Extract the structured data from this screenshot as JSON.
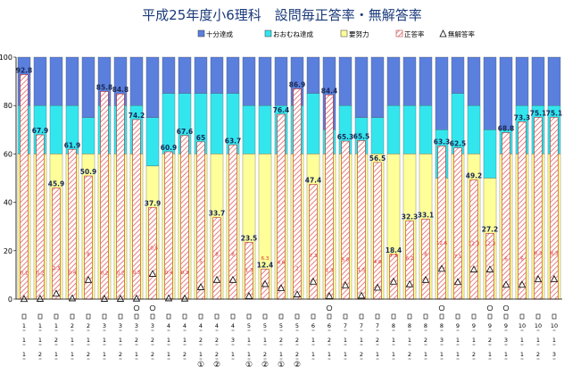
{
  "chart_data": {
    "type": "bar",
    "title": "平成25年度小6理科　設問毎正答率・無解答率",
    "legend": [
      {
        "name": "十分達成",
        "color": "#5b7fdc"
      },
      {
        "name": "おおむね達成",
        "color": "#33e6ee"
      },
      {
        "name": "要努力",
        "color": "#ffff99"
      },
      {
        "name": "正答率",
        "color": "#f8c8c8"
      },
      {
        "name": "無解答率",
        "color": "#ffffff"
      }
    ],
    "ylim": [
      0,
      100
    ],
    "yticks": [
      0,
      20,
      40,
      60,
      80,
      100
    ],
    "categories": [
      {
        "l1": "1",
        "l2": "1",
        "l3": "1",
        "circ": false,
        "extra": ""
      },
      {
        "l1": "1",
        "l2": "1",
        "l3": "2",
        "circ": false,
        "extra": ""
      },
      {
        "l1": "1",
        "l2": "2",
        "l3": "1",
        "circ": false,
        "extra": ""
      },
      {
        "l1": "2",
        "l2": "1",
        "l3": "1",
        "circ": false,
        "extra": ""
      },
      {
        "l1": "2",
        "l2": "1",
        "l3": "2",
        "circ": false,
        "extra": ""
      },
      {
        "l1": "3",
        "l2": "1",
        "l3": "1",
        "circ": false,
        "extra": ""
      },
      {
        "l1": "3",
        "l2": "1",
        "l3": "2",
        "circ": false,
        "extra": ""
      },
      {
        "l1": "3",
        "l2": "2",
        "l3": "1",
        "circ": true,
        "extra": ""
      },
      {
        "l1": "3",
        "l2": "2",
        "l3": "2",
        "circ": true,
        "extra": ""
      },
      {
        "l1": "4",
        "l2": "1",
        "l3": "1",
        "circ": false,
        "extra": ""
      },
      {
        "l1": "4",
        "l2": "1",
        "l3": "2",
        "circ": false,
        "extra": ""
      },
      {
        "l1": "4",
        "l2": "2",
        "l3": "1",
        "circ": false,
        "extra": "①"
      },
      {
        "l1": "4",
        "l2": "2",
        "l3": "2",
        "circ": false,
        "extra": "②"
      },
      {
        "l1": "4",
        "l2": "3",
        "l3": "1",
        "circ": false,
        "extra": ""
      },
      {
        "l1": "5",
        "l2": "1",
        "l3": "1",
        "circ": false,
        "extra": "①"
      },
      {
        "l1": "5",
        "l2": "1",
        "l3": "2",
        "circ": false,
        "extra": "②"
      },
      {
        "l1": "5",
        "l2": "2",
        "l3": "1",
        "circ": false,
        "extra": "①"
      },
      {
        "l1": "5",
        "l2": "2",
        "l3": "2",
        "circ": false,
        "extra": "②"
      },
      {
        "l1": "6",
        "l2": "1",
        "l3": "1",
        "circ": false,
        "extra": ""
      },
      {
        "l1": "6",
        "l2": "2",
        "l3": "1",
        "circ": true,
        "extra": ""
      },
      {
        "l1": "7",
        "l2": "1",
        "l3": "1",
        "circ": false,
        "extra": ""
      },
      {
        "l1": "7",
        "l2": "1",
        "l3": "2",
        "circ": false,
        "extra": ""
      },
      {
        "l1": "7",
        "l2": "2",
        "l3": "1",
        "circ": false,
        "extra": ""
      },
      {
        "l1": "8",
        "l2": "1",
        "l3": "1",
        "circ": false,
        "extra": ""
      },
      {
        "l1": "8",
        "l2": "1",
        "l3": "2",
        "circ": false,
        "extra": ""
      },
      {
        "l1": "8",
        "l2": "2",
        "l3": "1",
        "circ": false,
        "extra": ""
      },
      {
        "l1": "8",
        "l2": "3",
        "l3": "1",
        "circ": true,
        "extra": ""
      },
      {
        "l1": "9",
        "l2": "1",
        "l3": "1",
        "circ": false,
        "extra": ""
      },
      {
        "l1": "9",
        "l2": "1",
        "l3": "2",
        "circ": false,
        "extra": ""
      },
      {
        "l1": "9",
        "l2": "2",
        "l3": "1",
        "circ": true,
        "extra": ""
      },
      {
        "l1": "9",
        "l2": "3",
        "l3": "1",
        "circ": true,
        "extra": ""
      },
      {
        "l1": "10",
        "l2": "1",
        "l3": "1",
        "circ": false,
        "extra": ""
      },
      {
        "l1": "10",
        "l2": "1",
        "l3": "2",
        "circ": false,
        "extra": ""
      },
      {
        "l1": "10",
        "l2": "1",
        "l3": "3",
        "circ": false,
        "extra": ""
      }
    ],
    "series": [
      {
        "name": "十分達成",
        "values": [
          100,
          100,
          100,
          100,
          100,
          100,
          100,
          100,
          100,
          100,
          100,
          100,
          100,
          100,
          100,
          100,
          100,
          100,
          100,
          100,
          100,
          100,
          100,
          100,
          100,
          100,
          100,
          100,
          100,
          100,
          100,
          100,
          100,
          100
        ]
      },
      {
        "name": "おおむね達成",
        "values": [
          80,
          80,
          80,
          80,
          75,
          80,
          80,
          80,
          75,
          85,
          85,
          85,
          85,
          85,
          80,
          80,
          80,
          80,
          85,
          70,
          80,
          75,
          75,
          80,
          80,
          80,
          70,
          85,
          80,
          70,
          70,
          80,
          80,
          80
        ]
      },
      {
        "name": "要努力",
        "values": [
          60,
          60,
          60,
          60,
          60,
          60,
          60,
          60,
          55,
          60,
          60,
          60,
          60,
          60,
          60,
          60,
          60,
          60,
          60,
          60,
          60,
          60,
          60,
          60,
          60,
          60,
          50,
          60,
          60,
          50,
          60,
          60,
          60,
          60
        ]
      },
      {
        "name": "正答率",
        "values": [
          92.8,
          67.9,
          45.9,
          61.9,
          50.9,
          85.8,
          84.8,
          74.2,
          37.9,
          60.9,
          67.6,
          65.0,
          33.7,
          63.7,
          23.5,
          12.4,
          76.4,
          86.9,
          47.4,
          84.4,
          65.3,
          65.5,
          56.5,
          18.4,
          32.3,
          33.1,
          63.3,
          62.5,
          49.2,
          27.2,
          68.8,
          73.3,
          75.1,
          75.1
        ]
      },
      {
        "name": "無解答率",
        "values": [
          0.1,
          0.2,
          2.3,
          0.4,
          8.0,
          0.2,
          0.2,
          0.3,
          10.5,
          0.4,
          0.3,
          5.0,
          8.0,
          8.0,
          1.3,
          6.3,
          4.6,
          2.0,
          7.3,
          1.3,
          5.8,
          1.5,
          4.8,
          7.3,
          6.2,
          8.0,
          12.6,
          7.1,
          12.3,
          12.3,
          6.0,
          6.0,
          8.3,
          8.3
        ]
      }
    ]
  }
}
